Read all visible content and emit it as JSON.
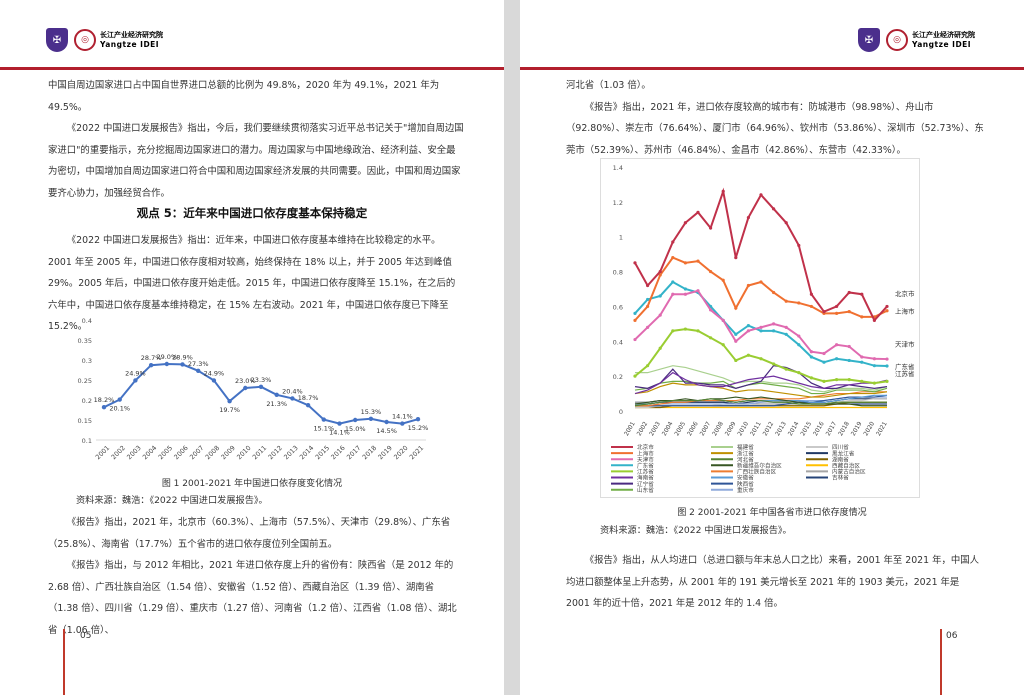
{
  "header": {
    "logo_cn": "长江产业经济研究院",
    "logo_en": "Yangtze IDEI"
  },
  "left": {
    "paragraphs_top": [
      "中国自周边国家进口占中国自世界进口总额的比例为 49.8%，2020 年为 49.1%，2021 年为 49.5%。",
      "《2022 中国进口发展报告》指出，今后，我们要继续贯彻落实习近平总书记关于\"增加自周边国家进口\"的重要指示，充分挖掘周边国家进口的潜力。周边国家与中国地缘政治、经济利益、安全最为密切，中国增加自周边国家进口符合中国和周边国家经济发展的共同需要。因此，中国和周边国家要齐心协力，加强经贸合作。"
    ],
    "heading": "观点 5：近年来中国进口依存度基本保持稳定",
    "paragraph_mid": "《2022 中国进口发展报告》指出：近年来，中国进口依存度基本维持在比较稳定的水平。2001 年至 2005 年，中国进口依存度相对较高，始终保持在 18% 以上，并于 2005 年达到峰值 29%。2005 年后，中国进口依存度开始走低。2015 年，中国进口依存度降至 15.1%，在之后的六年中，中国进口依存度基本维持稳定，在 15% 左右波动。2021 年，中国进口依存度已下降至 15.2%。",
    "caption": "图 1  2001-2021 年中国进口依存度变化情况",
    "source": "资料来源：魏浩：《2022 中国进口发展报告》。",
    "paragraphs_bottom": [
      "《报告》指出，2021 年，北京市（60.3%）、上海市（57.5%）、天津市（29.8%）、广东省（25.8%）、海南省（17.7%）五个省市的进口依存度位列全国前五。",
      "《报告》指出，与 2012 年相比，2021 年进口依存度上升的省份有：陕西省（是 2012 年的 2.68 倍）、广西壮族自治区（1.54 倍）、安徽省（1.52 倍）、西藏自治区（1.39 倍）、湖南省（1.38 倍）、四川省（1.29 倍）、重庆市（1.27 倍）、河南省（1.2 倍）、江西省（1.08 倍）、湖北省（1.06 倍）、"
    ],
    "page_number": "05"
  },
  "right": {
    "paragraphs_top": [
      "河北省（1.03 倍）。",
      "《报告》指出，2021 年，进口依存度较高的城市有：防城港市（98.98%）、舟山市（92.80%）、崇左市（76.64%）、厦门市（64.96%）、钦州市（53.86%）、深圳市（52.73%）、东莞市（52.39%）、苏州市（46.84%）、金昌市（42.86%）、东营市（42.33%）。"
    ],
    "caption": "图 2  2001-2021 年中国各省市进口依存度情况",
    "source": "资料来源：魏浩：《2022 中国进口发展报告》。",
    "paragraph_bottom": "《报告》指出，从人均进口（总进口额与年末总人口之比）来看，2001 年至 2021 年，中国人均进口额整体呈上升态势，从 2001 年的 191 美元增长至 2021 年的 1903 美元，2021 年是 2001 年的近十倍，2021 年是 2012 年的 1.4 倍。",
    "page_number": "06"
  },
  "colors": {
    "accent": "#b21f2d",
    "chart1_line": "#4472c4"
  },
  "chart_data": [
    {
      "type": "line",
      "title": "",
      "xlabel": "",
      "ylabel": "",
      "ylim": [
        0.1,
        0.4
      ],
      "yticks": [
        "0.1",
        "0.15",
        "0.2",
        "0.25",
        "0.3",
        "0.35",
        "0.4"
      ],
      "categories": [
        "2001",
        "2002",
        "2003",
        "2004",
        "2005",
        "2006",
        "2007",
        "2008",
        "2009",
        "2010",
        "2011",
        "2012",
        "2013",
        "2014",
        "2015",
        "2016",
        "2017",
        "2018",
        "2019",
        "2020",
        "2021"
      ],
      "values": [
        0.182,
        0.201,
        0.249,
        0.287,
        0.29,
        0.289,
        0.273,
        0.249,
        0.197,
        0.23,
        0.233,
        0.213,
        0.204,
        0.187,
        0.151,
        0.141,
        0.15,
        0.153,
        0.145,
        0.141,
        0.152
      ],
      "labels": [
        "18.2%",
        "20.1%",
        "24.9%",
        "28.7%",
        "29.0%",
        "28.9%",
        "27.3%",
        "24.9%",
        "19.7%",
        "23.0%",
        "23.3%",
        "21.3%",
        "20.4%",
        "18.7%",
        "15.1%",
        "14.1%",
        "15.0%",
        "15.3%",
        "14.5%",
        "14.1%",
        "15.2%"
      ]
    },
    {
      "type": "line",
      "title": "",
      "ylim": [
        0,
        1.4
      ],
      "yticks": [
        "0",
        "0.2",
        "0.4",
        "0.6",
        "0.8",
        "1",
        "1.2",
        "1.4"
      ],
      "categories": [
        "2001",
        "2002",
        "2003",
        "2004",
        "2005",
        "2006",
        "2007",
        "2008",
        "2009",
        "2010",
        "2011",
        "2012",
        "2013",
        "2014",
        "2015",
        "2016",
        "2017",
        "2018",
        "2019",
        "2020",
        "2021"
      ],
      "annotations": [
        "北京市",
        "上海市",
        "天津市",
        "广东省",
        "江苏省"
      ],
      "series": [
        {
          "name": "北京市",
          "color": "#c0314a",
          "values": [
            0.85,
            0.72,
            0.8,
            0.97,
            1.08,
            1.14,
            1.05,
            1.26,
            0.88,
            1.11,
            1.24,
            1.16,
            1.08,
            0.95,
            0.67,
            0.57,
            0.6,
            0.68,
            0.67,
            0.52,
            0.6
          ]
        },
        {
          "name": "上海市",
          "color": "#f07030",
          "values": [
            0.52,
            0.6,
            0.78,
            0.88,
            0.85,
            0.86,
            0.8,
            0.75,
            0.59,
            0.72,
            0.74,
            0.68,
            0.63,
            0.62,
            0.6,
            0.56,
            0.56,
            0.57,
            0.54,
            0.54,
            0.575
          ]
        },
        {
          "name": "天津市",
          "color": "#e06ab0",
          "values": [
            0.41,
            0.48,
            0.55,
            0.67,
            0.67,
            0.69,
            0.58,
            0.52,
            0.4,
            0.46,
            0.48,
            0.5,
            0.48,
            0.43,
            0.34,
            0.33,
            0.38,
            0.37,
            0.31,
            0.3,
            0.298
          ]
        },
        {
          "name": "广东省",
          "color": "#33b3c9",
          "values": [
            0.56,
            0.64,
            0.66,
            0.74,
            0.7,
            0.68,
            0.6,
            0.52,
            0.44,
            0.49,
            0.46,
            0.46,
            0.44,
            0.38,
            0.31,
            0.28,
            0.3,
            0.29,
            0.28,
            0.26,
            0.258
          ]
        },
        {
          "name": "江苏省",
          "color": "#9acd32",
          "values": [
            0.2,
            0.26,
            0.36,
            0.46,
            0.47,
            0.46,
            0.42,
            0.38,
            0.29,
            0.32,
            0.3,
            0.27,
            0.24,
            0.22,
            0.19,
            0.17,
            0.18,
            0.18,
            0.17,
            0.16,
            0.17
          ]
        },
        {
          "name": "海南省",
          "color": "#7030a0",
          "values": [
            0.1,
            0.12,
            0.16,
            0.22,
            0.18,
            0.15,
            0.14,
            0.14,
            0.16,
            0.18,
            0.19,
            0.2,
            0.18,
            0.16,
            0.14,
            0.13,
            0.15,
            0.15,
            0.16,
            0.16,
            0.177
          ]
        },
        {
          "name": "辽宁省",
          "color": "#4a2a80",
          "values": [
            0.14,
            0.13,
            0.16,
            0.24,
            0.16,
            0.16,
            0.15,
            0.15,
            0.13,
            0.15,
            0.17,
            0.26,
            0.25,
            0.22,
            0.16,
            0.13,
            0.13,
            0.15,
            0.14,
            0.13,
            0.14
          ]
        },
        {
          "name": "山东省",
          "color": "#70ad47",
          "values": [
            0.12,
            0.13,
            0.16,
            0.17,
            0.17,
            0.16,
            0.16,
            0.17,
            0.13,
            0.15,
            0.16,
            0.15,
            0.14,
            0.13,
            0.1,
            0.1,
            0.12,
            0.12,
            0.12,
            0.11,
            0.13
          ]
        },
        {
          "name": "福建省",
          "color": "#a9d08e",
          "values": [
            0.22,
            0.22,
            0.24,
            0.26,
            0.25,
            0.23,
            0.21,
            0.19,
            0.16,
            0.17,
            0.17,
            0.16,
            0.16,
            0.15,
            0.12,
            0.11,
            0.13,
            0.13,
            0.13,
            0.12,
            0.14
          ]
        },
        {
          "name": "浙江省",
          "color": "#bf9000",
          "values": [
            0.1,
            0.11,
            0.14,
            0.16,
            0.15,
            0.15,
            0.14,
            0.13,
            0.11,
            0.12,
            0.12,
            0.11,
            0.1,
            0.09,
            0.08,
            0.08,
            0.09,
            0.1,
            0.1,
            0.1,
            0.11
          ]
        },
        {
          "name": "河北省",
          "color": "#548235",
          "values": [
            0.03,
            0.04,
            0.05,
            0.06,
            0.06,
            0.06,
            0.07,
            0.06,
            0.05,
            0.06,
            0.06,
            0.05,
            0.05,
            0.04,
            0.04,
            0.04,
            0.05,
            0.05,
            0.05,
            0.05,
            0.05
          ]
        },
        {
          "name": "新疆维吾尔自治区",
          "color": "#375623",
          "values": [
            0.04,
            0.05,
            0.06,
            0.06,
            0.07,
            0.06,
            0.07,
            0.07,
            0.08,
            0.07,
            0.08,
            0.07,
            0.06,
            0.05,
            0.04,
            0.04,
            0.04,
            0.04,
            0.03,
            0.03,
            0.03
          ]
        },
        {
          "name": "广西壮族自治区",
          "color": "#ed7d31",
          "values": [
            0.03,
            0.03,
            0.04,
            0.05,
            0.05,
            0.06,
            0.06,
            0.06,
            0.06,
            0.07,
            0.07,
            0.07,
            0.07,
            0.07,
            0.08,
            0.09,
            0.1,
            0.1,
            0.11,
            0.11,
            0.11
          ]
        },
        {
          "name": "安徽省",
          "color": "#5b9bd5",
          "values": [
            0.04,
            0.04,
            0.05,
            0.06,
            0.06,
            0.06,
            0.06,
            0.06,
            0.05,
            0.06,
            0.06,
            0.06,
            0.06,
            0.06,
            0.05,
            0.05,
            0.06,
            0.07,
            0.08,
            0.09,
            0.09
          ]
        },
        {
          "name": "陕西省",
          "color": "#2f5597",
          "values": [
            0.03,
            0.03,
            0.03,
            0.03,
            0.03,
            0.03,
            0.03,
            0.03,
            0.03,
            0.03,
            0.03,
            0.03,
            0.04,
            0.05,
            0.05,
            0.06,
            0.07,
            0.08,
            0.08,
            0.08,
            0.09
          ]
        },
        {
          "name": "重庆市",
          "color": "#8faadc",
          "values": [
            0.03,
            0.03,
            0.04,
            0.04,
            0.04,
            0.04,
            0.04,
            0.04,
            0.04,
            0.04,
            0.05,
            0.06,
            0.06,
            0.06,
            0.06,
            0.06,
            0.07,
            0.08,
            0.08,
            0.08,
            0.08
          ]
        },
        {
          "name": "四川省",
          "color": "#c9c9c9",
          "values": [
            0.02,
            0.02,
            0.03,
            0.03,
            0.03,
            0.03,
            0.03,
            0.04,
            0.04,
            0.04,
            0.05,
            0.05,
            0.05,
            0.05,
            0.04,
            0.04,
            0.05,
            0.06,
            0.06,
            0.07,
            0.07
          ]
        },
        {
          "name": "黑龙江省",
          "color": "#203864",
          "values": [
            0.04,
            0.04,
            0.05,
            0.05,
            0.05,
            0.05,
            0.05,
            0.05,
            0.04,
            0.05,
            0.06,
            0.06,
            0.06,
            0.06,
            0.05,
            0.05,
            0.06,
            0.07,
            0.07,
            0.07,
            0.07
          ]
        },
        {
          "name": "湖南省",
          "color": "#7f6000",
          "values": [
            0.02,
            0.02,
            0.02,
            0.03,
            0.03,
            0.03,
            0.03,
            0.03,
            0.03,
            0.03,
            0.03,
            0.03,
            0.03,
            0.03,
            0.03,
            0.03,
            0.04,
            0.05,
            0.05,
            0.05,
            0.05
          ]
        },
        {
          "name": "西藏自治区",
          "color": "#ffc000",
          "values": [
            0.02,
            0.02,
            0.02,
            0.02,
            0.02,
            0.02,
            0.02,
            0.02,
            0.02,
            0.02,
            0.02,
            0.02,
            0.02,
            0.02,
            0.02,
            0.02,
            0.02,
            0.02,
            0.02,
            0.02,
            0.02
          ]
        },
        {
          "name": "内蒙古自治区",
          "color": "#a5a5a5",
          "values": [
            0.05,
            0.05,
            0.06,
            0.06,
            0.06,
            0.05,
            0.05,
            0.05,
            0.04,
            0.04,
            0.04,
            0.04,
            0.04,
            0.04,
            0.04,
            0.04,
            0.04,
            0.05,
            0.05,
            0.05,
            0.05
          ]
        },
        {
          "name": "吉林省",
          "color": "#264478",
          "values": [
            0.05,
            0.05,
            0.06,
            0.06,
            0.06,
            0.06,
            0.06,
            0.06,
            0.05,
            0.06,
            0.06,
            0.06,
            0.06,
            0.05,
            0.04,
            0.04,
            0.04,
            0.04,
            0.04,
            0.04,
            0.04
          ]
        }
      ]
    }
  ]
}
